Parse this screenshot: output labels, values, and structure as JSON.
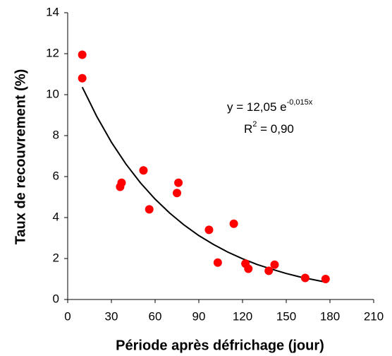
{
  "chart_data": {
    "type": "scatter",
    "x_label": "Période après défrichage (jour)",
    "y_label": "Taux de recouvrement (%)",
    "xlim": [
      0,
      210
    ],
    "xticks": [
      0,
      30,
      60,
      90,
      120,
      150,
      180,
      210
    ],
    "ylim": [
      0,
      14
    ],
    "yticks": [
      0,
      2,
      4,
      6,
      8,
      10,
      12,
      14
    ],
    "color": "#ff0000",
    "x": [
      10,
      10,
      37,
      36,
      52,
      56,
      76,
      75,
      97,
      103,
      114,
      122,
      124,
      138,
      142,
      163,
      177
    ],
    "values": [
      11.95,
      10.8,
      5.7,
      5.5,
      6.3,
      4.4,
      5.7,
      5.2,
      3.4,
      1.8,
      3.7,
      1.75,
      1.5,
      1.4,
      1.7,
      1.05,
      1.0
    ],
    "fit": {
      "color": "#000000",
      "x": [
        10,
        20,
        30,
        40,
        50,
        60,
        70,
        80,
        90,
        100,
        110,
        120,
        130,
        140,
        150,
        160,
        177
      ],
      "values": [
        10.37,
        8.93,
        7.68,
        6.61,
        5.69,
        4.9,
        4.22,
        3.63,
        3.12,
        2.69,
        2.31,
        1.99,
        1.71,
        1.48,
        1.27,
        1.09,
        0.85
      ]
    },
    "equation": {
      "text": "y = 12,05 e",
      "exponent": "-0,015x"
    },
    "r2": {
      "text": "R",
      "exponent": "2",
      "rest": " = 0,90"
    }
  }
}
